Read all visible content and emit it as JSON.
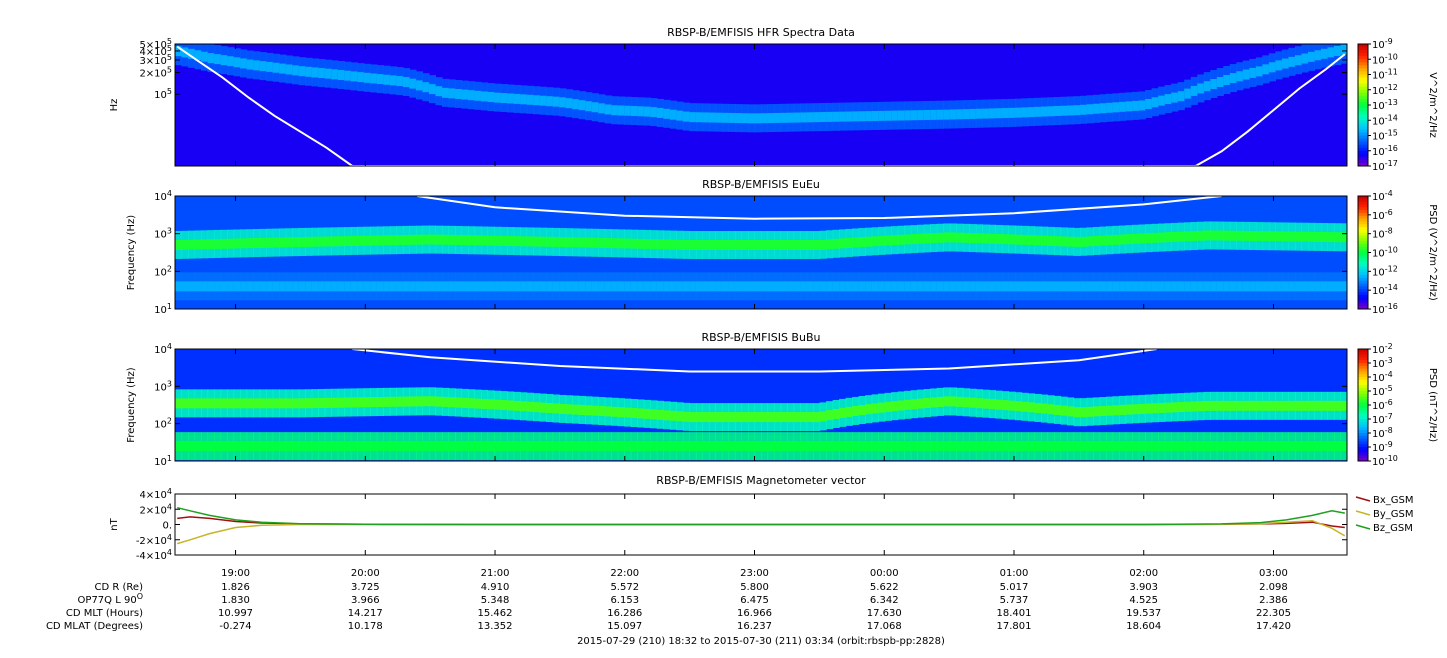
{
  "footer": {
    "time_range": "2015-07-29 (210) 18:32 to 2015-07-30 (211) 03:34 (orbit:rbspb-pp:2828)"
  },
  "time_axis": {
    "start_hours": 18.5333,
    "end_hours": 27.5667,
    "tick_hours": [
      19,
      20,
      21,
      22,
      23,
      24,
      25,
      26,
      27
    ],
    "tick_labels": [
      "19:00",
      "20:00",
      "21:00",
      "22:00",
      "23:00",
      "00:00",
      "01:00",
      "02:00",
      "03:00"
    ]
  },
  "ephemeris": {
    "rows": [
      {
        "label": "CD R (Re)",
        "values": [
          "1.826",
          "3.725",
          "4.910",
          "5.572",
          "5.800",
          "5.622",
          "5.017",
          "3.903",
          "2.098"
        ]
      },
      {
        "label": "OP77Q L 90",
        "superscript": "O",
        "values": [
          "1.830",
          "3.966",
          "5.348",
          "6.153",
          "6.475",
          "6.342",
          "5.737",
          "4.525",
          "2.386"
        ]
      },
      {
        "label": "CD MLT (Hours)",
        "values": [
          "10.997",
          "14.217",
          "15.462",
          "16.286",
          "16.966",
          "17.630",
          "18.401",
          "19.537",
          "22.305"
        ]
      },
      {
        "label": "CD MLAT (Degrees)",
        "values": [
          "-0.274",
          "10.178",
          "13.352",
          "15.097",
          "16.237",
          "17.068",
          "17.801",
          "18.604",
          "17.420"
        ]
      }
    ]
  },
  "colormap": [
    "#7a00c8",
    "#0000ff",
    "#0060ff",
    "#00c0ff",
    "#00ffc0",
    "#00ff40",
    "#80ff00",
    "#ffff00",
    "#ffa000",
    "#ff2000",
    "#c80000"
  ],
  "chart_data": [
    {
      "type": "heatmap",
      "title": "RBSP-B/EMFISIS  HFR Spectra Data",
      "ylabel": "Hz",
      "y_scale": "log",
      "ylim": [
        10000,
        500000
      ],
      "y_ticks": [
        {
          "value": 500000,
          "mantissa": "5×10",
          "exp": "5"
        },
        {
          "value": 400000,
          "mantissa": "4×10",
          "exp": "5"
        },
        {
          "value": 300000,
          "mantissa": "3×10",
          "exp": "5"
        },
        {
          "value": 200000,
          "mantissa": "2×10",
          "exp": "5"
        },
        {
          "value": 100000,
          "mantissa": "10",
          "exp": "5"
        }
      ],
      "colorbar": {
        "label": "V^2/m^2/Hz",
        "scale": "log",
        "ticks": [
          {
            "mantissa": "10",
            "exp": "-9"
          },
          {
            "mantissa": "10",
            "exp": "-10"
          },
          {
            "mantissa": "10",
            "exp": "-11"
          },
          {
            "mantissa": "10",
            "exp": "-12"
          },
          {
            "mantissa": "10",
            "exp": "-13"
          },
          {
            "mantissa": "10",
            "exp": "-14"
          },
          {
            "mantissa": "10",
            "exp": "-15"
          },
          {
            "mantissa": "10",
            "exp": "-16"
          },
          {
            "mantissa": "10",
            "exp": "-17"
          }
        ]
      },
      "background_level": 0.08,
      "bands": [
        {
          "name": "upper-hybrid line",
          "x": [
            18.55,
            18.8,
            19.1,
            19.5,
            20.0,
            20.3,
            20.6,
            21.0,
            21.5,
            21.9,
            22.2,
            22.5,
            23.0,
            23.5,
            24.0,
            24.5,
            25.0,
            25.5,
            26.0,
            26.3,
            26.6,
            26.9,
            27.2,
            27.55
          ],
          "y": [
            400000,
            320000,
            260000,
            210000,
            170000,
            150000,
            105000,
            90000,
            78000,
            60000,
            57000,
            48000,
            46000,
            48000,
            50000,
            52000,
            55000,
            60000,
            70000,
            95000,
            150000,
            210000,
            300000,
            420000
          ],
          "level": 0.28,
          "halo": 0.2
        }
      ],
      "overlay_curve": {
        "color": "#ffffff",
        "x": [
          18.55,
          18.7,
          18.9,
          19.1,
          19.3,
          19.5,
          19.7,
          19.9,
          26.4,
          26.6,
          26.8,
          27.0,
          27.2,
          27.4,
          27.55
        ],
        "y": [
          460000,
          300000,
          170000,
          90000,
          50000,
          30000,
          18000,
          10000,
          10000,
          16000,
          30000,
          60000,
          120000,
          220000,
          360000
        ]
      }
    },
    {
      "type": "heatmap",
      "title": "RBSP-B/EMFISIS  EuEu",
      "ylabel": "Frequency (Hz)",
      "y_scale": "log",
      "ylim": [
        10,
        10000
      ],
      "y_ticks": [
        {
          "value": 10000,
          "mantissa": "10",
          "exp": "4"
        },
        {
          "value": 1000,
          "mantissa": "10",
          "exp": "3"
        },
        {
          "value": 100,
          "mantissa": "10",
          "exp": "2"
        },
        {
          "value": 10,
          "mantissa": "10",
          "exp": "1"
        }
      ],
      "colorbar": {
        "label": "PSD (V^2/m^2/Hz)",
        "scale": "log",
        "ticks": [
          {
            "mantissa": "10",
            "exp": "-4"
          },
          {
            "mantissa": "10",
            "exp": "-6"
          },
          {
            "mantissa": "10",
            "exp": "-8"
          },
          {
            "mantissa": "10",
            "exp": "-10"
          },
          {
            "mantissa": "10",
            "exp": "-12"
          },
          {
            "mantissa": "10",
            "exp": "-14"
          },
          {
            "mantissa": "10",
            "exp": "-16"
          }
        ]
      },
      "background_level": 0.18,
      "bands": [
        {
          "name": "hiss band",
          "x": [
            18.55,
            19.5,
            20.5,
            21.5,
            22.5,
            23.5,
            24.5,
            25.5,
            26.5,
            27.55
          ],
          "y": [
            500,
            600,
            700,
            600,
            500,
            500,
            800,
            600,
            900,
            800
          ],
          "level": 0.52,
          "halo": 0.38
        },
        {
          "name": "low band",
          "x": [
            18.55,
            27.55
          ],
          "y": [
            40,
            40
          ],
          "level": 0.28,
          "halo": 0.22
        }
      ],
      "overlay_curve": {
        "color": "#ffffff",
        "x": [
          20.4,
          21.0,
          22.0,
          23.0,
          24.0,
          25.0,
          26.0,
          26.6
        ],
        "y": [
          10000,
          5000,
          3000,
          2500,
          2600,
          3500,
          6000,
          10000
        ]
      }
    },
    {
      "type": "heatmap",
      "title": "RBSP-B/EMFISIS  BuBu",
      "ylabel": "Frequency (Hz)",
      "y_scale": "log",
      "ylim": [
        10,
        10000
      ],
      "y_ticks": [
        {
          "value": 10000,
          "mantissa": "10",
          "exp": "4"
        },
        {
          "value": 1000,
          "mantissa": "10",
          "exp": "3"
        },
        {
          "value": 100,
          "mantissa": "10",
          "exp": "2"
        },
        {
          "value": 10,
          "mantissa": "10",
          "exp": "1"
        }
      ],
      "colorbar": {
        "label": "PSD (nT^2/Hz)",
        "scale": "log",
        "ticks": [
          {
            "mantissa": "10",
            "exp": "-2"
          },
          {
            "mantissa": "10",
            "exp": "-3"
          },
          {
            "mantissa": "10",
            "exp": "-4"
          },
          {
            "mantissa": "10",
            "exp": "-5"
          },
          {
            "mantissa": "10",
            "exp": "-6"
          },
          {
            "mantissa": "10",
            "exp": "-7"
          },
          {
            "mantissa": "10",
            "exp": "-8"
          },
          {
            "mantissa": "10",
            "exp": "-9"
          },
          {
            "mantissa": "10",
            "exp": "-10"
          }
        ]
      },
      "background_level": 0.15,
      "bands": [
        {
          "name": "chorus/hiss band",
          "x": [
            18.55,
            19.5,
            20.5,
            21.5,
            22.5,
            23.5,
            24.5,
            25.5,
            26.5,
            27.55
          ],
          "y": [
            350,
            350,
            400,
            250,
            150,
            150,
            400,
            200,
            300,
            300
          ],
          "level": 0.55,
          "halo": 0.4
        },
        {
          "name": "low-frequency floor",
          "x": [
            18.55,
            27.55
          ],
          "y": [
            25,
            25
          ],
          "level": 0.5,
          "halo": 0.45
        }
      ],
      "overlay_curve": {
        "color": "#ffffff",
        "x": [
          19.9,
          20.5,
          21.5,
          22.5,
          23.5,
          24.5,
          25.5,
          26.1
        ],
        "y": [
          10000,
          6000,
          3500,
          2500,
          2500,
          3000,
          5000,
          10000
        ]
      }
    },
    {
      "type": "line",
      "title": "RBSP-B/EMFISIS  Magnetometer vector",
      "ylabel": "nT",
      "ylim": [
        -40000,
        40000
      ],
      "y_ticks": [
        {
          "value": 40000,
          "mantissa": "4×10",
          "exp": "4"
        },
        {
          "value": 20000,
          "mantissa": "2×10",
          "exp": "4"
        },
        {
          "value": 0,
          "mantissa": "0.",
          "exp": ""
        },
        {
          "value": -20000,
          "mantissa": "-2×10",
          "exp": "4"
        },
        {
          "value": -40000,
          "mantissa": "-4×10",
          "exp": "4"
        }
      ],
      "x": [
        18.55,
        18.65,
        18.8,
        19.0,
        19.2,
        19.5,
        20.0,
        21.0,
        22.0,
        23.0,
        24.0,
        25.0,
        26.0,
        26.6,
        26.9,
        27.1,
        27.3,
        27.45,
        27.55
      ],
      "series": [
        {
          "name": "Bx_GSM",
          "color": "#a01010",
          "values": [
            8000,
            10000,
            8000,
            4000,
            2000,
            800,
            200,
            0,
            0,
            0,
            0,
            0,
            0,
            200,
            800,
            1500,
            3000,
            -2000,
            -4000
          ]
        },
        {
          "name": "By_GSM",
          "color": "#c8b428",
          "values": [
            -25000,
            -20000,
            -12000,
            -4000,
            -1000,
            0,
            0,
            0,
            0,
            0,
            0,
            0,
            0,
            300,
            1000,
            3000,
            5000,
            -5000,
            -15000
          ]
        },
        {
          "name": "Bz_GSM",
          "color": "#20a020",
          "values": [
            22000,
            18000,
            12000,
            6000,
            3000,
            1000,
            200,
            0,
            0,
            0,
            0,
            0,
            0,
            800,
            2500,
            6000,
            12000,
            18000,
            15000
          ]
        }
      ]
    }
  ]
}
